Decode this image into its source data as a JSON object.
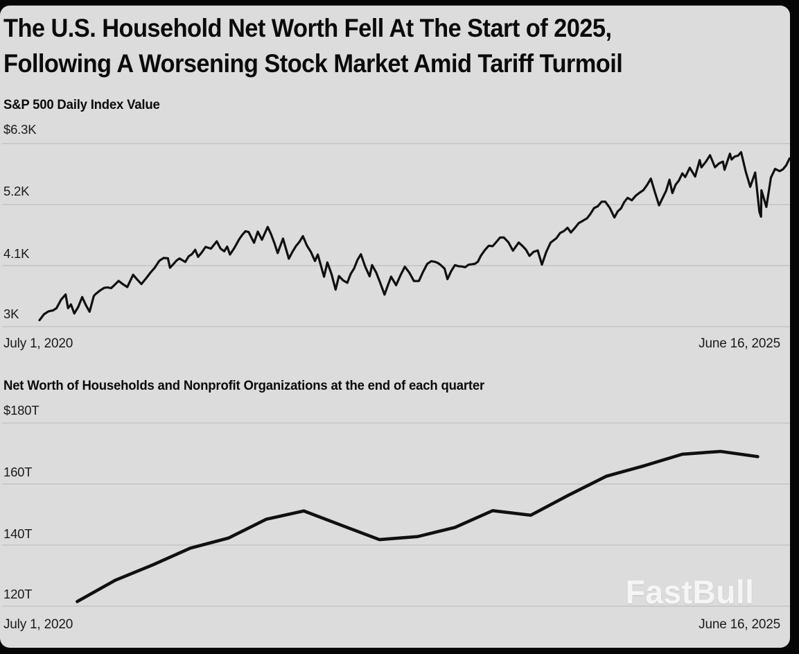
{
  "frame": {
    "background_color": "#060606",
    "card_color": "#dcdcdc",
    "gridline_color": "#c3c3c3",
    "line_color": "#101010",
    "text_color": "#0b0b0b"
  },
  "title": {
    "line1": "The U.S. Household Net Worth Fell At The Start of 2025,",
    "line2": "Following A Worsening Stock Market Amid Tariff Turmoil"
  },
  "watermark": {
    "text": "FastBull",
    "color": "#ffffff"
  },
  "chart_data": [
    {
      "id": "sp500",
      "type": "line",
      "title": "S&P 500 Daily Index Value",
      "resolution": "daily",
      "grid": true,
      "legend": "none",
      "y_ticks": [
        "$6.3K",
        "5.2K",
        "4.1K",
        "3K"
      ],
      "y_tick_values": [
        6300,
        5200,
        4100,
        3000
      ],
      "ylim": [
        2900,
        6420
      ],
      "x_axis": {
        "start_label": "July 1, 2020",
        "end_label": "June 16, 2025",
        "span_days": 1812
      },
      "points_format": "[days_since_start, index_value]",
      "points": [
        [
          0,
          3116
        ],
        [
          22,
          3276
        ],
        [
          33,
          3294
        ],
        [
          41,
          3333
        ],
        [
          63,
          3580
        ],
        [
          69,
          3332
        ],
        [
          76,
          3401
        ],
        [
          84,
          3237
        ],
        [
          103,
          3534
        ],
        [
          121,
          3270
        ],
        [
          131,
          3550
        ],
        [
          135,
          3585
        ],
        [
          156,
          3699
        ],
        [
          173,
          3695
        ],
        [
          191,
          3825
        ],
        [
          212,
          3714
        ],
        [
          226,
          3935
        ],
        [
          246,
          3768
        ],
        [
          268,
          3975
        ],
        [
          289,
          4185
        ],
        [
          310,
          4233
        ],
        [
          315,
          4063
        ],
        [
          338,
          4230
        ],
        [
          352,
          4166
        ],
        [
          376,
          4385
        ],
        [
          383,
          4258
        ],
        [
          401,
          4437
        ],
        [
          414,
          4406
        ],
        [
          428,
          4537
        ],
        [
          446,
          4358
        ],
        [
          453,
          4443
        ],
        [
          460,
          4300
        ],
        [
          482,
          4575
        ],
        [
          505,
          4705
        ],
        [
          518,
          4513
        ],
        [
          527,
          4712
        ],
        [
          537,
          4568
        ],
        [
          551,
          4797
        ],
        [
          575,
          4326
        ],
        [
          588,
          4587
        ],
        [
          602,
          4225
        ],
        [
          636,
          4631
        ],
        [
          665,
          4184
        ],
        [
          672,
          4300
        ],
        [
          687,
          3900
        ],
        [
          695,
          4158
        ],
        [
          715,
          3667
        ],
        [
          723,
          3912
        ],
        [
          743,
          3790
        ],
        [
          776,
          4305
        ],
        [
          797,
          3908
        ],
        [
          803,
          4110
        ],
        [
          833,
          3577
        ],
        [
          849,
          3901
        ],
        [
          861,
          3748
        ],
        [
          882,
          4080
        ],
        [
          904,
          3822
        ],
        [
          916,
          3824
        ],
        [
          946,
          4180
        ],
        [
          978,
          4048
        ],
        [
          985,
          3856
        ],
        [
          1003,
          4109
        ],
        [
          1028,
          4071
        ],
        [
          1066,
          4282
        ],
        [
          1094,
          4450
        ],
        [
          1121,
          4607
        ],
        [
          1143,
          4370
        ],
        [
          1157,
          4516
        ],
        [
          1183,
          4275
        ],
        [
          1203,
          4373
        ],
        [
          1213,
          4117
        ],
        [
          1234,
          4514
        ],
        [
          1248,
          4594
        ],
        [
          1275,
          4783
        ],
        [
          1283,
          4697
        ],
        [
          1302,
          4868
        ],
        [
          1322,
          4953
        ],
        [
          1339,
          5137
        ],
        [
          1366,
          5254
        ],
        [
          1388,
          4967
        ],
        [
          1420,
          5321
        ],
        [
          1430,
          5278
        ],
        [
          1458,
          5460
        ],
        [
          1476,
          5667
        ],
        [
          1496,
          5186
        ],
        [
          1521,
          5648
        ],
        [
          1528,
          5408
        ],
        [
          1552,
          5762
        ],
        [
          1559,
          5696
        ],
        [
          1570,
          5865
        ],
        [
          1583,
          5705
        ],
        [
          1594,
          6001
        ],
        [
          1598,
          5871
        ],
        [
          1619,
          6090
        ],
        [
          1631,
          5872
        ],
        [
          1650,
          5975
        ],
        [
          1654,
          5827
        ],
        [
          1667,
          6118
        ],
        [
          1671,
          6012
        ],
        [
          1694,
          6144
        ],
        [
          1716,
          5521
        ],
        [
          1728,
          5777
        ],
        [
          1738,
          5074
        ],
        [
          1742,
          4983
        ],
        [
          1743,
          5457
        ],
        [
          1755,
          5158
        ],
        [
          1766,
          5687
        ],
        [
          1776,
          5844
        ],
        [
          1787,
          5803
        ],
        [
          1811,
          6033
        ]
      ]
    },
    {
      "id": "net_worth",
      "type": "line",
      "title": "Net Worth of Households and Nonprofit Organizations at the end of each quarter",
      "resolution": "quarterly",
      "grid": true,
      "legend": "none",
      "y_ticks": [
        "$180T",
        "160T",
        "140T",
        "120T"
      ],
      "y_tick_values": [
        180,
        160,
        140,
        120
      ],
      "ylim": [
        118,
        182
      ],
      "x_axis": {
        "start_label": "July 1, 2020",
        "end_label": "June 16, 2025",
        "span_days": 1812
      },
      "points_format": "[days_since_start, trillions_usd]",
      "points": [
        [
          91,
          121.5
        ],
        [
          183,
          128.5
        ],
        [
          273,
          133.5
        ],
        [
          364,
          139.0
        ],
        [
          456,
          142.3
        ],
        [
          548,
          148.5
        ],
        [
          638,
          151.2
        ],
        [
          729,
          146.5
        ],
        [
          821,
          141.8
        ],
        [
          913,
          142.8
        ],
        [
          1003,
          145.8
        ],
        [
          1094,
          151.3
        ],
        [
          1186,
          149.8
        ],
        [
          1278,
          156.4
        ],
        [
          1369,
          162.6
        ],
        [
          1460,
          166.0
        ],
        [
          1552,
          169.8
        ],
        [
          1644,
          170.7
        ],
        [
          1734,
          169.0
        ]
      ]
    }
  ]
}
